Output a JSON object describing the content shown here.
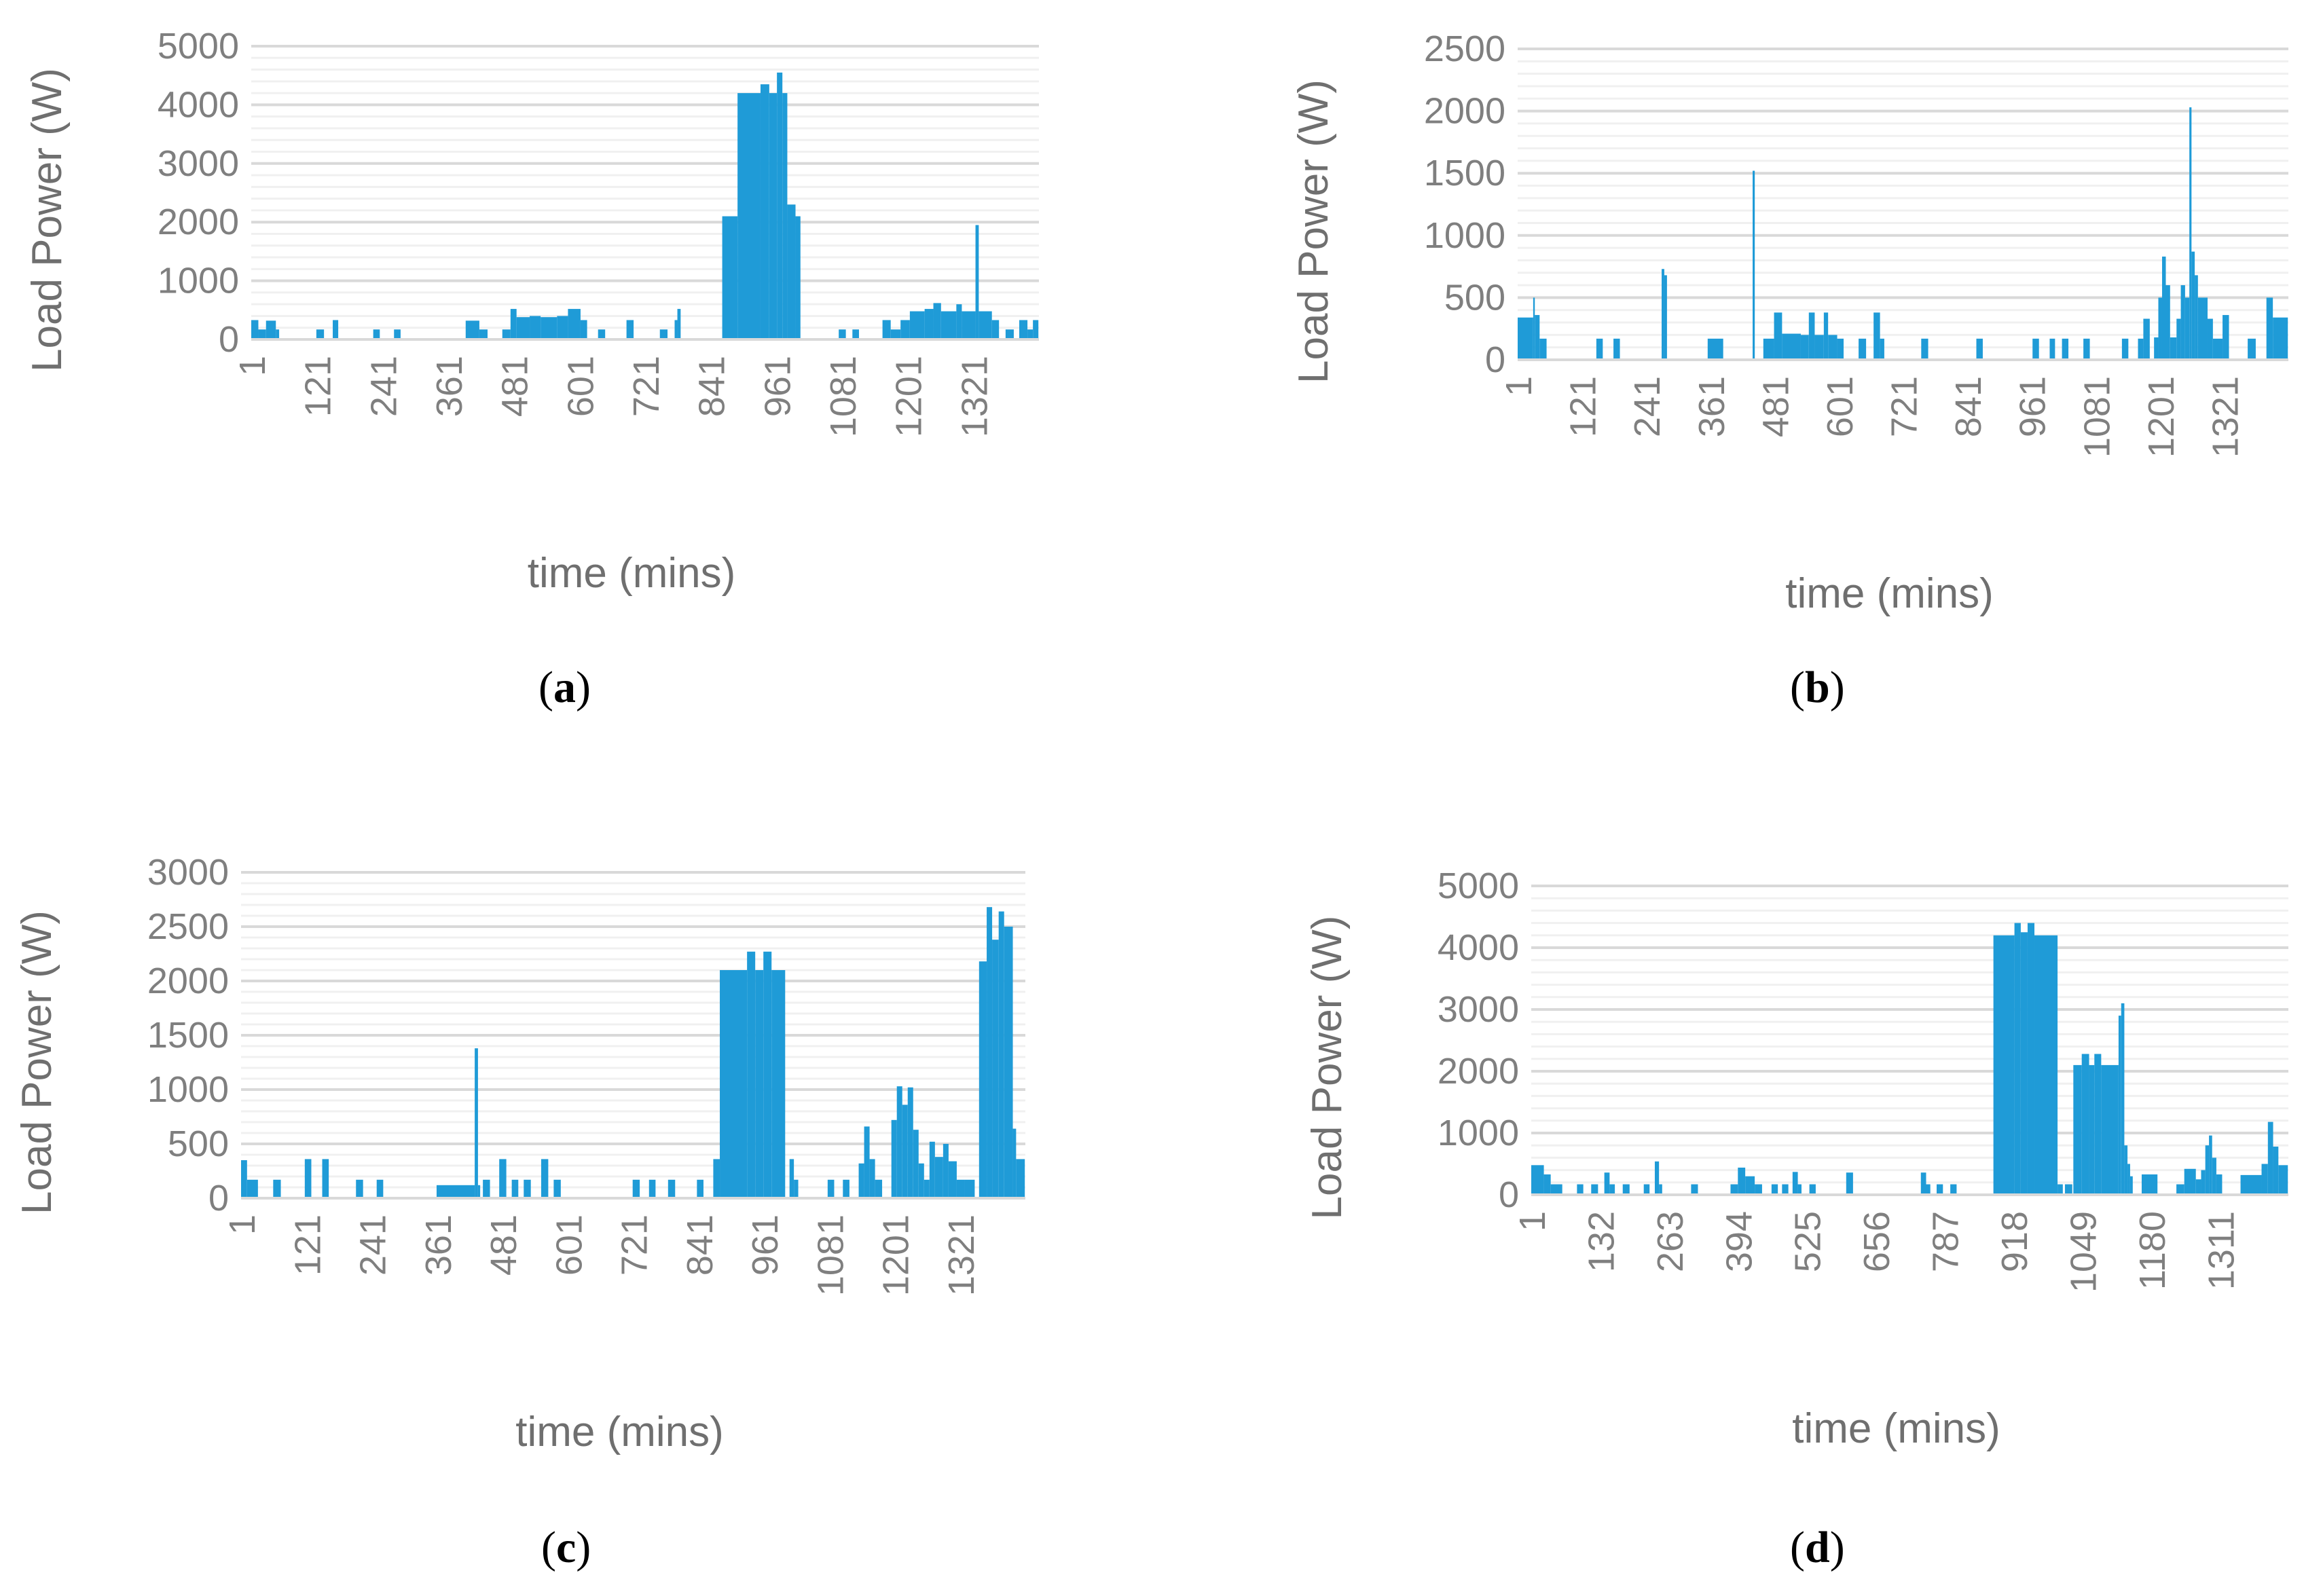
{
  "chart_data": [
    {
      "id": "a",
      "type": "bar",
      "caption_open": "(",
      "caption_letter": "a",
      "caption_close": ")",
      "xlabel": "time (mins)",
      "ylabel": "Load Power (W)",
      "ylim": [
        0,
        5000
      ],
      "yticks": [
        "5000",
        "4000",
        "3000",
        "2000",
        "1000",
        "0"
      ],
      "ytick_values": [
        5000,
        4000,
        3000,
        2000,
        1000,
        0
      ],
      "xlim": [
        1,
        1440
      ],
      "xticks": [
        "1",
        "121",
        "241",
        "361",
        "481",
        "601",
        "721",
        "841",
        "961",
        "1081",
        "1201",
        "1321"
      ],
      "xtick_values": [
        1,
        121,
        241,
        361,
        481,
        601,
        721,
        841,
        961,
        1081,
        1201,
        1321
      ],
      "color": "#1f9bd7",
      "segments": [
        [
          1,
          14,
          330
        ],
        [
          14,
          28,
          170
        ],
        [
          28,
          46,
          320
        ],
        [
          46,
          52,
          170
        ],
        [
          120,
          134,
          170
        ],
        [
          150,
          160,
          330
        ],
        [
          224,
          236,
          170
        ],
        [
          262,
          274,
          170
        ],
        [
          393,
          418,
          320
        ],
        [
          418,
          433,
          170
        ],
        [
          460,
          475,
          170
        ],
        [
          475,
          486,
          520
        ],
        [
          486,
          510,
          380
        ],
        [
          510,
          530,
          400
        ],
        [
          530,
          560,
          380
        ],
        [
          560,
          580,
          400
        ],
        [
          580,
          603,
          520
        ],
        [
          603,
          615,
          330
        ],
        [
          635,
          648,
          170
        ],
        [
          687,
          700,
          330
        ],
        [
          748,
          762,
          170
        ],
        [
          775,
          780,
          330
        ],
        [
          780,
          786,
          520
        ],
        [
          862,
          890,
          2100
        ],
        [
          890,
          932,
          4200
        ],
        [
          932,
          948,
          4350
        ],
        [
          948,
          962,
          4200
        ],
        [
          962,
          972,
          4550
        ],
        [
          972,
          981,
          4200
        ],
        [
          981,
          996,
          2300
        ],
        [
          996,
          1005,
          2100
        ],
        [
          1075,
          1088,
          170
        ],
        [
          1100,
          1112,
          170
        ],
        [
          1155,
          1170,
          330
        ],
        [
          1170,
          1188,
          170
        ],
        [
          1188,
          1205,
          330
        ],
        [
          1205,
          1232,
          480
        ],
        [
          1232,
          1248,
          520
        ],
        [
          1248,
          1262,
          620
        ],
        [
          1262,
          1290,
          480
        ],
        [
          1290,
          1300,
          600
        ],
        [
          1300,
          1325,
          480
        ],
        [
          1325,
          1331,
          1950
        ],
        [
          1331,
          1355,
          480
        ],
        [
          1355,
          1368,
          330
        ],
        [
          1380,
          1395,
          170
        ],
        [
          1405,
          1420,
          330
        ],
        [
          1420,
          1430,
          170
        ],
        [
          1430,
          1440,
          330
        ]
      ]
    },
    {
      "id": "b",
      "type": "bar",
      "caption_open": "(",
      "caption_letter": "b",
      "caption_close": ")",
      "xlabel": "time (mins)",
      "ylabel": "Load Power (W)",
      "ylim": [
        0,
        2500
      ],
      "yticks": [
        "2500",
        "2000",
        "1500",
        "1000",
        "500",
        "0"
      ],
      "ytick_values": [
        2500,
        2000,
        1500,
        1000,
        500,
        0
      ],
      "xlim": [
        1,
        1440
      ],
      "xticks": [
        "1",
        "121",
        "241",
        "361",
        "481",
        "601",
        "721",
        "841",
        "961",
        "1081",
        "1201",
        "1321"
      ],
      "xtick_values": [
        1,
        121,
        241,
        361,
        481,
        601,
        721,
        841,
        961,
        1081,
        1201,
        1321
      ],
      "color": "#1f9bd7",
      "segments": [
        [
          1,
          30,
          340
        ],
        [
          30,
          33,
          500
        ],
        [
          33,
          42,
          360
        ],
        [
          42,
          55,
          170
        ],
        [
          148,
          160,
          170
        ],
        [
          180,
          192,
          170
        ],
        [
          270,
          275,
          730
        ],
        [
          275,
          280,
          680
        ],
        [
          356,
          385,
          170
        ],
        [
          440,
          444,
          1520
        ],
        [
          460,
          480,
          170
        ],
        [
          480,
          495,
          380
        ],
        [
          495,
          530,
          210
        ],
        [
          530,
          545,
          200
        ],
        [
          545,
          556,
          380
        ],
        [
          556,
          573,
          200
        ],
        [
          573,
          581,
          380
        ],
        [
          581,
          598,
          200
        ],
        [
          598,
          610,
          170
        ],
        [
          638,
          652,
          170
        ],
        [
          666,
          678,
          380
        ],
        [
          678,
          686,
          170
        ],
        [
          755,
          768,
          170
        ],
        [
          858,
          870,
          170
        ],
        [
          963,
          975,
          170
        ],
        [
          995,
          1005,
          170
        ],
        [
          1018,
          1030,
          170
        ],
        [
          1058,
          1070,
          170
        ],
        [
          1130,
          1142,
          170
        ],
        [
          1160,
          1170,
          170
        ],
        [
          1170,
          1182,
          330
        ],
        [
          1190,
          1198,
          180
        ],
        [
          1198,
          1205,
          500
        ],
        [
          1205,
          1212,
          830
        ],
        [
          1212,
          1220,
          600
        ],
        [
          1220,
          1232,
          180
        ],
        [
          1232,
          1240,
          330
        ],
        [
          1240,
          1248,
          600
        ],
        [
          1248,
          1256,
          500
        ],
        [
          1256,
          1260,
          2030
        ],
        [
          1260,
          1266,
          870
        ],
        [
          1266,
          1272,
          680
        ],
        [
          1272,
          1290,
          500
        ],
        [
          1290,
          1300,
          330
        ],
        [
          1300,
          1318,
          170
        ],
        [
          1318,
          1330,
          360
        ],
        [
          1365,
          1380,
          170
        ],
        [
          1400,
          1412,
          500
        ],
        [
          1412,
          1440,
          340
        ]
      ]
    },
    {
      "id": "c",
      "type": "bar",
      "caption_open": "(",
      "caption_letter": "c",
      "caption_close": ")",
      "xlabel": "time (mins)",
      "ylabel": "Load Power (W)",
      "ylim": [
        0,
        3000
      ],
      "yticks": [
        "3000",
        "2500",
        "2000",
        "1500",
        "1000",
        "500",
        "0"
      ],
      "ytick_values": [
        3000,
        2500,
        2000,
        1500,
        1000,
        500,
        0
      ],
      "xlim": [
        1,
        1440
      ],
      "xticks": [
        "1",
        "121",
        "241",
        "361",
        "481",
        "601",
        "721",
        "841",
        "961",
        "1081",
        "1201",
        "1321"
      ],
      "xtick_values": [
        1,
        121,
        241,
        361,
        481,
        601,
        721,
        841,
        961,
        1081,
        1201,
        1321
      ],
      "color": "#1f9bd7",
      "segments": [
        [
          1,
          12,
          350
        ],
        [
          12,
          32,
          170
        ],
        [
          60,
          74,
          170
        ],
        [
          118,
          130,
          360
        ],
        [
          150,
          162,
          360
        ],
        [
          212,
          225,
          170
        ],
        [
          250,
          262,
          170
        ],
        [
          360,
          430,
          120
        ],
        [
          430,
          436,
          1380
        ],
        [
          436,
          440,
          120
        ],
        [
          445,
          458,
          170
        ],
        [
          475,
          488,
          360
        ],
        [
          498,
          510,
          170
        ],
        [
          520,
          533,
          170
        ],
        [
          552,
          565,
          360
        ],
        [
          575,
          588,
          170
        ],
        [
          720,
          733,
          170
        ],
        [
          750,
          762,
          170
        ],
        [
          785,
          798,
          170
        ],
        [
          838,
          850,
          170
        ],
        [
          868,
          880,
          360
        ],
        [
          880,
          930,
          2100
        ],
        [
          930,
          945,
          2270
        ],
        [
          945,
          960,
          2100
        ],
        [
          960,
          975,
          2270
        ],
        [
          975,
          1000,
          2100
        ],
        [
          1008,
          1016,
          360
        ],
        [
          1016,
          1024,
          170
        ],
        [
          1078,
          1090,
          170
        ],
        [
          1106,
          1118,
          170
        ],
        [
          1135,
          1145,
          320
        ],
        [
          1145,
          1155,
          660
        ],
        [
          1155,
          1165,
          360
        ],
        [
          1165,
          1178,
          170
        ],
        [
          1195,
          1205,
          720
        ],
        [
          1205,
          1215,
          1030
        ],
        [
          1215,
          1225,
          860
        ],
        [
          1225,
          1235,
          1020
        ],
        [
          1235,
          1245,
          630
        ],
        [
          1245,
          1255,
          320
        ],
        [
          1255,
          1265,
          170
        ],
        [
          1265,
          1275,
          520
        ],
        [
          1275,
          1290,
          380
        ],
        [
          1290,
          1300,
          500
        ],
        [
          1300,
          1315,
          340
        ],
        [
          1315,
          1330,
          170
        ],
        [
          1330,
          1348,
          170
        ],
        [
          1356,
          1370,
          2180
        ],
        [
          1370,
          1380,
          2680
        ],
        [
          1380,
          1392,
          2380
        ],
        [
          1392,
          1402,
          2640
        ],
        [
          1402,
          1418,
          2500
        ],
        [
          1418,
          1424,
          640
        ],
        [
          1424,
          1440,
          360
        ]
      ]
    },
    {
      "id": "d",
      "type": "bar",
      "caption_open": "(",
      "caption_letter": "d",
      "caption_close": ")",
      "xlabel": "time (mins)",
      "ylabel": "Load Power (W)",
      "ylim": [
        0,
        5000
      ],
      "yticks": [
        "5000",
        "4000",
        "3000",
        "2000",
        "1000",
        "0"
      ],
      "ytick_values": [
        5000,
        4000,
        3000,
        2000,
        1000,
        0
      ],
      "xlim": [
        1,
        1440
      ],
      "xticks": [
        "1",
        "132",
        "263",
        "394",
        "525",
        "656",
        "787",
        "918",
        "1049",
        "1180",
        "1311"
      ],
      "xtick_values": [
        1,
        132,
        263,
        394,
        525,
        656,
        787,
        918,
        1049,
        1180,
        1311
      ],
      "color": "#1f9bd7",
      "segments": [
        [
          1,
          25,
          480
        ],
        [
          25,
          38,
          330
        ],
        [
          38,
          60,
          170
        ],
        [
          88,
          100,
          170
        ],
        [
          115,
          128,
          170
        ],
        [
          140,
          150,
          360
        ],
        [
          150,
          160,
          170
        ],
        [
          175,
          188,
          170
        ],
        [
          215,
          226,
          170
        ],
        [
          236,
          244,
          540
        ],
        [
          244,
          250,
          170
        ],
        [
          305,
          318,
          170
        ],
        [
          380,
          394,
          170
        ],
        [
          394,
          408,
          440
        ],
        [
          408,
          426,
          300
        ],
        [
          426,
          440,
          170
        ],
        [
          458,
          470,
          170
        ],
        [
          478,
          490,
          170
        ],
        [
          498,
          508,
          370
        ],
        [
          508,
          515,
          170
        ],
        [
          530,
          542,
          170
        ],
        [
          600,
          613,
          360
        ],
        [
          742,
          752,
          360
        ],
        [
          752,
          760,
          170
        ],
        [
          772,
          784,
          170
        ],
        [
          798,
          810,
          170
        ],
        [
          880,
          920,
          4200
        ],
        [
          920,
          932,
          4400
        ],
        [
          932,
          945,
          4250
        ],
        [
          945,
          958,
          4400
        ],
        [
          958,
          1002,
          4200
        ],
        [
          1002,
          1012,
          170
        ],
        [
          1016,
          1030,
          170
        ],
        [
          1032,
          1048,
          2100
        ],
        [
          1048,
          1062,
          2280
        ],
        [
          1062,
          1072,
          2100
        ],
        [
          1072,
          1085,
          2280
        ],
        [
          1085,
          1118,
          2100
        ],
        [
          1118,
          1123,
          2900
        ],
        [
          1123,
          1129,
          3100
        ],
        [
          1129,
          1135,
          800
        ],
        [
          1135,
          1140,
          500
        ],
        [
          1140,
          1145,
          300
        ],
        [
          1162,
          1192,
          330
        ],
        [
          1228,
          1243,
          170
        ],
        [
          1243,
          1265,
          420
        ],
        [
          1265,
          1275,
          250
        ],
        [
          1275,
          1283,
          400
        ],
        [
          1283,
          1290,
          800
        ],
        [
          1290,
          1296,
          960
        ],
        [
          1296,
          1304,
          600
        ],
        [
          1304,
          1315,
          330
        ],
        [
          1350,
          1390,
          320
        ],
        [
          1390,
          1402,
          500
        ],
        [
          1402,
          1412,
          1180
        ],
        [
          1412,
          1422,
          780
        ],
        [
          1422,
          1440,
          480
        ]
      ]
    }
  ]
}
